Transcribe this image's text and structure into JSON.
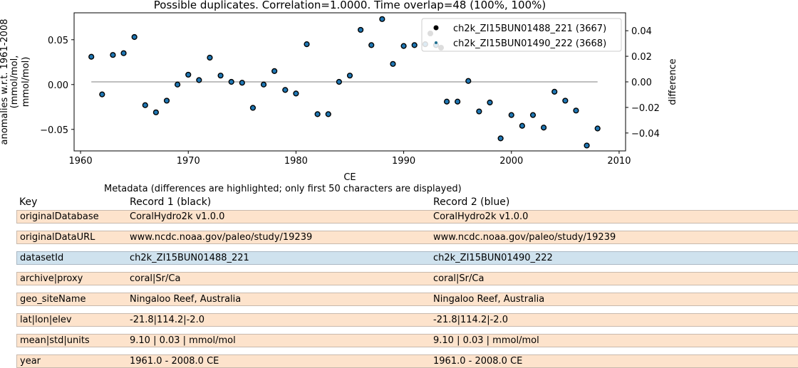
{
  "chart_data": {
    "type": "scatter",
    "title": "Possible duplicates. Correlation=1.0000. Time overlap=48 (100%, 100%)",
    "xlabel": "CE",
    "ylabel": "anomalies w.r.t. 1961-2008\n(mmol/mol,\nmmol/mol)",
    "y2label": "difference",
    "xlim": [
      1959.4,
      2010.6
    ],
    "ylim": [
      -0.074,
      0.08
    ],
    "y2lim": [
      -0.054,
      0.054
    ],
    "xticks": [
      "1960",
      "1970",
      "1980",
      "1990",
      "2000",
      "2010"
    ],
    "yticks": [
      "0.05",
      "0.00",
      "−0.05"
    ],
    "y2ticks": [
      "0.04",
      "0.02",
      "0.00",
      "−0.02",
      "−0.04"
    ],
    "legend_position": "top-right",
    "series": [
      {
        "name": "ch2k_ZI15BUN01488_221 (3667)",
        "marker_color": "#000000",
        "fill_color": "#1f77b4"
      },
      {
        "name": "ch2k_ZI15BUN01490_222 (3668)",
        "marker_color": "#1f6f8f"
      }
    ],
    "difference_line_color": "#aaaaaa",
    "difference_value": 0.0,
    "x": [
      1961,
      1962,
      1963,
      1964,
      1965,
      1966,
      1967,
      1968,
      1969,
      1970,
      1971,
      1972,
      1973,
      1974,
      1975,
      1976,
      1977,
      1978,
      1979,
      1980,
      1981,
      1982,
      1983,
      1984,
      1985,
      1986,
      1987,
      1988,
      1989,
      1990,
      1991,
      1992,
      1993,
      1994,
      1995,
      1996,
      1997,
      1998,
      1999,
      2000,
      2001,
      2002,
      2003,
      2004,
      2005,
      2006,
      2007,
      2008
    ],
    "y": [
      0.031,
      -0.011,
      0.033,
      0.035,
      0.053,
      -0.023,
      -0.031,
      -0.018,
      0.0,
      0.011,
      0.005,
      0.03,
      0.01,
      0.003,
      0.002,
      -0.026,
      0.0,
      0.015,
      -0.006,
      -0.01,
      0.045,
      -0.033,
      -0.033,
      0.003,
      0.01,
      0.061,
      0.044,
      0.073,
      0.023,
      0.043,
      0.044,
      0.045,
      0.044,
      -0.019,
      -0.019,
      0.004,
      -0.03,
      -0.02,
      -0.06,
      -0.034,
      -0.046,
      -0.034,
      -0.048,
      -0.008,
      -0.018,
      -0.029,
      -0.068,
      -0.049
    ]
  },
  "metadata": {
    "title": "Metadata (differences are highlighted; only first 50 characters are displayed)",
    "headers": {
      "key": "Key",
      "r1": "Record 1 (black)",
      "r2": "Record 2 (blue)"
    },
    "same_color": "#fde3cc",
    "diff_color": "#cfe2ee",
    "rows": [
      {
        "key": "originalDatabase",
        "r1": "CoralHydro2k v1.0.0",
        "r2": "CoralHydro2k v1.0.0",
        "diff": false
      },
      {
        "key": "originalDataURL",
        "r1": "www.ncdc.noaa.gov/paleo/study/19239",
        "r2": "www.ncdc.noaa.gov/paleo/study/19239",
        "diff": false
      },
      {
        "key": "datasetId",
        "r1": "ch2k_ZI15BUN01488_221",
        "r2": "ch2k_ZI15BUN01490_222",
        "diff": true
      },
      {
        "key": "archive|proxy",
        "r1": "coral|Sr/Ca",
        "r2": "coral|Sr/Ca",
        "diff": false
      },
      {
        "key": "geo_siteName",
        "r1": "Ningaloo Reef, Australia",
        "r2": "Ningaloo Reef, Australia",
        "diff": false
      },
      {
        "key": "lat|lon|elev",
        "r1": "-21.8|114.2|-2.0",
        "r2": "-21.8|114.2|-2.0",
        "diff": false
      },
      {
        "key": "mean|std|units",
        "r1": "9.10 | 0.03 | mmol/mol",
        "r2": "9.10 | 0.03 | mmol/mol",
        "diff": false
      },
      {
        "key": "year",
        "r1": "1961.0 - 2008.0 CE",
        "r2": "1961.0 - 2008.0 CE",
        "diff": false
      }
    ]
  }
}
